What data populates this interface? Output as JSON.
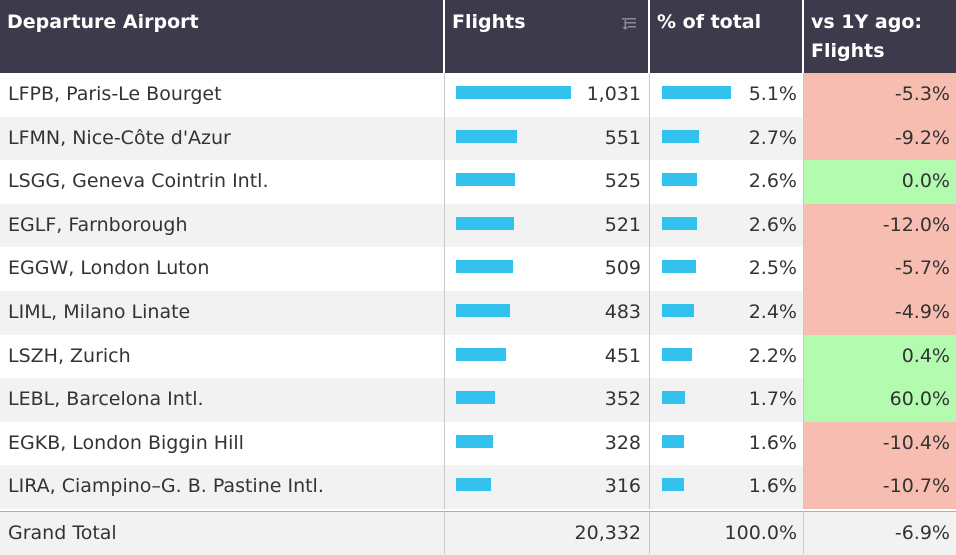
{
  "headers": {
    "airport": "Departure Airport",
    "flights": "Flights",
    "pct": "% of total",
    "vs_line1": "vs 1Y ago:",
    "vs_line2": "Flights"
  },
  "colors": {
    "header_bg": "#3c3a4b",
    "bar": "#33c2ee",
    "negative_bg": "#f7bdb0",
    "positive_bg": "#b3fbae"
  },
  "icons": {
    "sort": "sort-descending-icon"
  },
  "rows": [
    {
      "airport": "LFPB, Paris-Le Bourget",
      "flights": "1,031",
      "flights_value": 1031,
      "pct": "5.1%",
      "pct_value": 5.1,
      "change": "-5.3%",
      "trend": "negative"
    },
    {
      "airport": "LFMN, Nice-Côte d'Azur",
      "flights": "551",
      "flights_value": 551,
      "pct": "2.7%",
      "pct_value": 2.7,
      "change": "-9.2%",
      "trend": "negative"
    },
    {
      "airport": "LSGG, Geneva Cointrin Intl.",
      "flights": "525",
      "flights_value": 525,
      "pct": "2.6%",
      "pct_value": 2.6,
      "change": "0.0%",
      "trend": "positive"
    },
    {
      "airport": "EGLF, Farnborough",
      "flights": "521",
      "flights_value": 521,
      "pct": "2.6%",
      "pct_value": 2.6,
      "change": "-12.0%",
      "trend": "negative"
    },
    {
      "airport": "EGGW, London Luton",
      "flights": "509",
      "flights_value": 509,
      "pct": "2.5%",
      "pct_value": 2.5,
      "change": "-5.7%",
      "trend": "negative"
    },
    {
      "airport": "LIML, Milano Linate",
      "flights": "483",
      "flights_value": 483,
      "pct": "2.4%",
      "pct_value": 2.4,
      "change": "-4.9%",
      "trend": "negative"
    },
    {
      "airport": "LSZH, Zurich",
      "flights": "451",
      "flights_value": 451,
      "pct": "2.2%",
      "pct_value": 2.2,
      "change": "0.4%",
      "trend": "positive"
    },
    {
      "airport": "LEBL, Barcelona Intl.",
      "flights": "352",
      "flights_value": 352,
      "pct": "1.7%",
      "pct_value": 1.7,
      "change": "60.0%",
      "trend": "positive"
    },
    {
      "airport": "EGKB, London Biggin Hill",
      "flights": "328",
      "flights_value": 328,
      "pct": "1.6%",
      "pct_value": 1.6,
      "change": "-10.4%",
      "trend": "negative"
    },
    {
      "airport": "LIRA, Ciampino–G. B. Pastine Intl.",
      "flights": "316",
      "flights_value": 316,
      "pct": "1.6%",
      "pct_value": 1.6,
      "change": "-10.7%",
      "trend": "negative"
    }
  ],
  "total": {
    "label": "Grand Total",
    "flights": "20,332",
    "pct": "100.0%",
    "change": "-6.9%"
  }
}
